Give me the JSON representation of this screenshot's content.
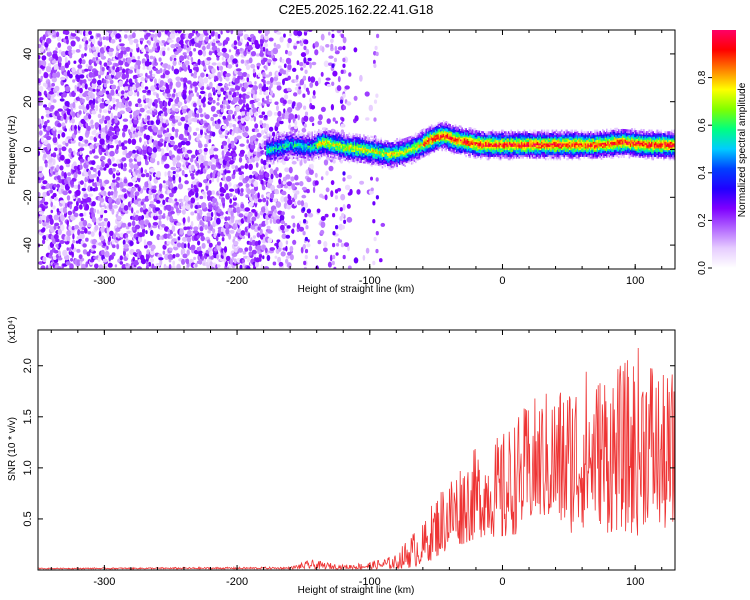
{
  "figure": {
    "title": "C2E5.2025.162.22.41.G18"
  },
  "chart_data": [
    {
      "type": "heatmap",
      "xlabel": "Height of straight line (km)",
      "ylabel": "Frequency (Hz)",
      "xlim": [
        -350,
        130
      ],
      "ylim": [
        -50,
        50
      ],
      "xticks": [
        "-300",
        "-200",
        "-100",
        "0",
        "100"
      ],
      "yticks": [
        "-40",
        "-20",
        "0",
        "20",
        "40"
      ],
      "colorbar": {
        "label": "Normalized spectral amplitude",
        "range": [
          0,
          1
        ],
        "ticks": [
          "0.0",
          "0.2",
          "0.4",
          "0.6",
          "0.8"
        ],
        "colors": [
          "#ffffff",
          "#e6ccff",
          "#b266ff",
          "#7f00ff",
          "#2000ff",
          "#0040ff",
          "#00ccff",
          "#00ff80",
          "#80ff00",
          "#ffff00",
          "#ff8000",
          "#ff0000",
          "#ff0066"
        ]
      },
      "track": {
        "x": [
          -175,
          -160,
          -145,
          -135,
          -120,
          -105,
          -95,
          -85,
          -75,
          -65,
          -55,
          -45,
          -35,
          -25,
          -15,
          -5,
          5,
          15,
          30,
          50,
          70,
          90,
          110,
          130
        ],
        "y": [
          0,
          2,
          1,
          3,
          1,
          0,
          -1,
          -2,
          -1,
          1,
          4,
          6,
          4,
          3,
          2,
          2,
          2,
          2,
          2,
          2,
          2,
          3,
          2,
          2
        ]
      }
    },
    {
      "type": "line",
      "xlabel": "Height of straight line (km)",
      "ylabel": "SNR (10 * v/v)",
      "yscale_label": "(x10⁴)",
      "xlim": [
        -350,
        130
      ],
      "ylim": [
        0,
        2.35
      ],
      "xticks": [
        "-300",
        "-200",
        "-100",
        "0",
        "100"
      ],
      "yticks": [
        "0.5",
        "1.0",
        "1.5",
        "2.0"
      ],
      "series": [
        {
          "color": "#ee3333",
          "envelope": {
            "x": [
              -350,
              -160,
              -145,
              -120,
              -100,
              -80,
              -70,
              -60,
              -50,
              -40,
              -30,
              -20,
              -10,
              0,
              10,
              20,
              30,
              40,
              50,
              60,
              70,
              80,
              90,
              100,
              110,
              120,
              130
            ],
            "upper": [
              0.02,
              0.03,
              0.1,
              0.05,
              0.08,
              0.15,
              0.35,
              0.45,
              0.75,
              0.95,
              1.1,
              1.2,
              1.25,
              1.35,
              1.5,
              1.65,
              1.75,
              1.8,
              1.9,
              2.05,
              1.9,
              2.1,
              2.0,
              2.2,
              2.25,
              1.9,
              2.0
            ],
            "lower": [
              0.01,
              0.01,
              0.01,
              0.01,
              0.01,
              0.01,
              0.02,
              0.05,
              0.12,
              0.2,
              0.25,
              0.3,
              0.35,
              0.25,
              0.35,
              0.45,
              0.5,
              0.45,
              0.35,
              0.4,
              0.5,
              0.35,
              0.4,
              0.3,
              0.5,
              0.4,
              0.3
            ]
          }
        }
      ]
    }
  ]
}
